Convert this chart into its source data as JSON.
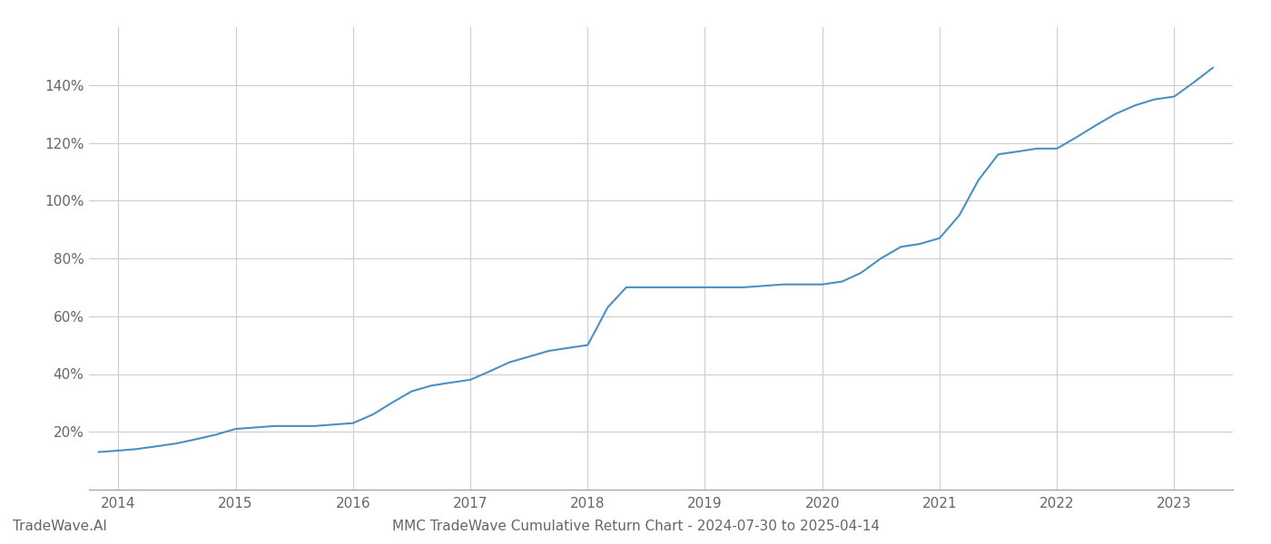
{
  "title": "MMC TradeWave Cumulative Return Chart - 2024-07-30 to 2025-04-14",
  "watermark": "TradeWave.AI",
  "line_color": "#4a90c4",
  "line_width": 1.5,
  "background_color": "#ffffff",
  "grid_color": "#cccccc",
  "x_years": [
    2014,
    2015,
    2016,
    2017,
    2018,
    2019,
    2020,
    2021,
    2022,
    2023
  ],
  "y_ticks": [
    20,
    40,
    60,
    80,
    100,
    120,
    140
  ],
  "x_data": [
    2013.83,
    2014.0,
    2014.15,
    2014.33,
    2014.5,
    2014.67,
    2014.83,
    2015.0,
    2015.17,
    2015.33,
    2015.5,
    2015.67,
    2015.83,
    2016.0,
    2016.17,
    2016.33,
    2016.5,
    2016.67,
    2016.83,
    2017.0,
    2017.17,
    2017.33,
    2017.5,
    2017.67,
    2017.83,
    2018.0,
    2018.08,
    2018.17,
    2018.33,
    2018.5,
    2018.67,
    2018.83,
    2019.0,
    2019.17,
    2019.33,
    2019.5,
    2019.67,
    2019.83,
    2020.0,
    2020.17,
    2020.33,
    2020.5,
    2020.67,
    2020.83,
    2021.0,
    2021.17,
    2021.33,
    2021.5,
    2021.67,
    2021.83,
    2022.0,
    2022.17,
    2022.33,
    2022.5,
    2022.67,
    2022.83,
    2023.0,
    2023.17,
    2023.33
  ],
  "y_data": [
    13,
    13.5,
    14,
    15,
    16,
    17.5,
    19,
    21,
    21.5,
    22,
    22,
    22,
    22.5,
    23,
    26,
    30,
    34,
    36,
    37,
    38,
    41,
    44,
    46,
    48,
    49,
    50,
    56,
    63,
    70,
    70,
    70,
    70,
    70,
    70,
    70,
    70.5,
    71,
    71,
    71,
    72,
    75,
    80,
    84,
    85,
    87,
    95,
    107,
    116,
    117,
    118,
    118,
    122,
    126,
    130,
    133,
    135,
    136,
    141,
    146
  ],
  "ylim": [
    0,
    160
  ],
  "xlim": [
    2013.75,
    2023.5
  ],
  "tick_label_color": "#666666",
  "tick_fontsize": 11,
  "title_fontsize": 11,
  "watermark_fontsize": 11
}
